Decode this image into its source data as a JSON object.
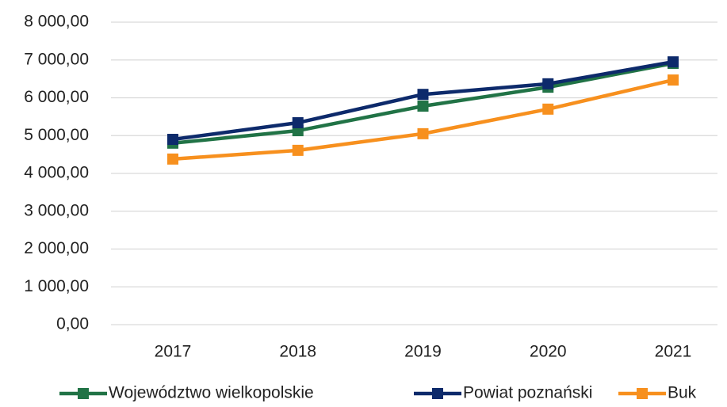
{
  "chart_data": {
    "type": "line",
    "categories": [
      "2017",
      "2018",
      "2019",
      "2020",
      "2021"
    ],
    "series": [
      {
        "name": "Województwo wielkopolskie",
        "color": "#217346",
        "values": [
          4800,
          5130,
          5780,
          6280,
          6910
        ]
      },
      {
        "name": "Powiat poznański",
        "color": "#0d2a6b",
        "values": [
          4900,
          5340,
          6090,
          6370,
          6950
        ]
      },
      {
        "name": "Buk",
        "color": "#f7901e",
        "values": [
          4380,
          4610,
          5050,
          5700,
          6470
        ]
      }
    ],
    "ylim": [
      0,
      8000
    ],
    "yticks": [
      {
        "value": 0,
        "label": "0,00"
      },
      {
        "value": 1000,
        "label": "1 000,00"
      },
      {
        "value": 2000,
        "label": "2 000,00"
      },
      {
        "value": 3000,
        "label": "3 000,00"
      },
      {
        "value": 4000,
        "label": "4 000,00"
      },
      {
        "value": 5000,
        "label": "5 000,00"
      },
      {
        "value": 6000,
        "label": "6 000,00"
      },
      {
        "value": 7000,
        "label": "7 000,00"
      },
      {
        "value": 8000,
        "label": "8 000,00"
      }
    ],
    "grid": true,
    "legend": "bottom"
  }
}
